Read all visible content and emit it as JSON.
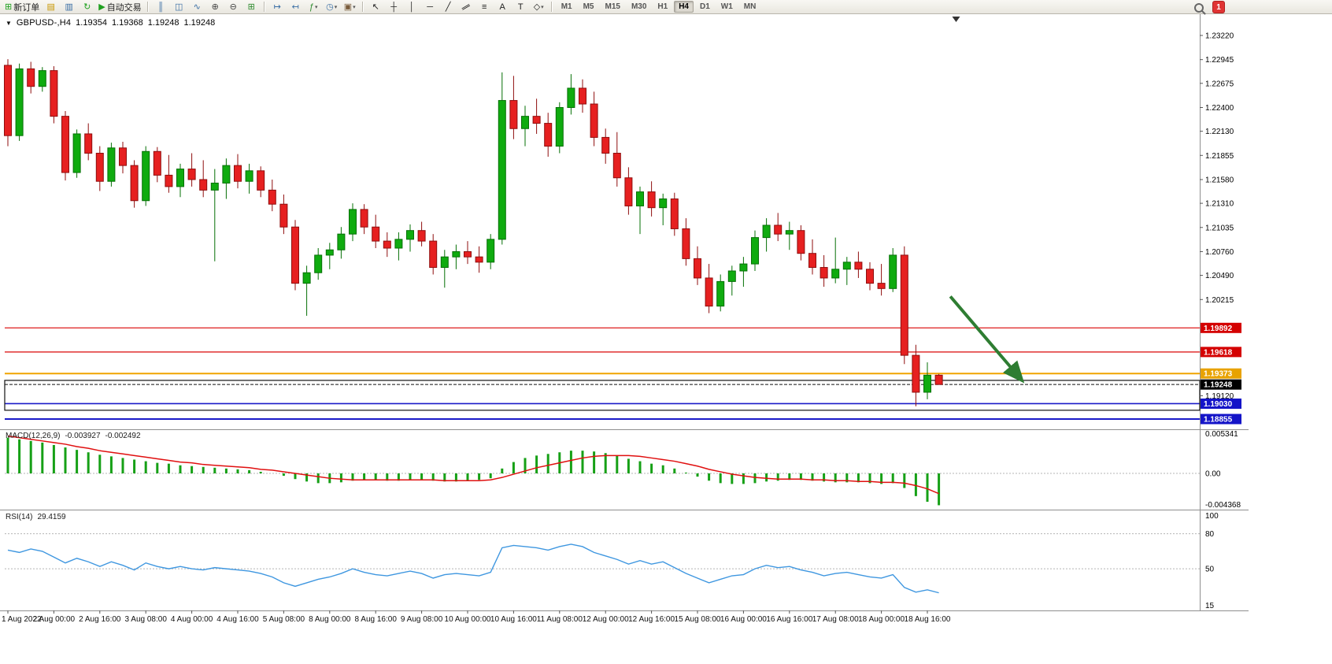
{
  "toolbar": {
    "groups": [
      {
        "items": [
          {
            "name": "new-order-button",
            "glyph": "⊞",
            "color": "#1fa01f",
            "label": "新订单"
          },
          {
            "name": "profiles-button",
            "glyph": "▤",
            "color": "#c89600"
          },
          {
            "name": "market-watch-button",
            "glyph": "▥",
            "color": "#3a6ea5"
          },
          {
            "name": "refresh-button",
            "glyph": "↻",
            "color": "#1fa01f"
          },
          {
            "name": "auto-trading-button",
            "glyph": "▶",
            "color": "#1fa01f",
            "label": "自动交易"
          }
        ]
      },
      {
        "items": [
          {
            "name": "bar-chart-button",
            "glyph": "║",
            "color": "#3a6ea5"
          },
          {
            "name": "candlestick-chart-button",
            "glyph": "◫",
            "color": "#3a6ea5"
          },
          {
            "name": "line-chart-button",
            "glyph": "∿",
            "color": "#3a6ea5"
          },
          {
            "name": "zoom-in-button",
            "glyph": "⊕",
            "color": "#444444"
          },
          {
            "name": "zoom-out-button",
            "glyph": "⊖",
            "color": "#444444"
          },
          {
            "name": "tile-windows-button",
            "glyph": "⊞",
            "color": "#2e8b2e"
          }
        ]
      },
      {
        "items": [
          {
            "name": "auto-scroll-button",
            "glyph": "↦",
            "color": "#3a6ea5"
          },
          {
            "name": "chart-shift-button",
            "glyph": "↤",
            "color": "#3a6ea5"
          },
          {
            "name": "indicators-button",
            "glyph": "ƒ",
            "color": "#2e8b2e",
            "dropdown": true
          },
          {
            "name": "periods-button",
            "glyph": "◷",
            "color": "#3a6ea5",
            "dropdown": true
          },
          {
            "name": "templates-button",
            "glyph": "▣",
            "color": "#7a5c3c",
            "dropdown": true
          }
        ]
      },
      {
        "items": [
          {
            "name": "cursor-button",
            "glyph": "↖",
            "color": "#222222"
          },
          {
            "name": "crosshair-button",
            "glyph": "┼",
            "color": "#222222"
          },
          {
            "name": "vertical-line-button",
            "glyph": "│",
            "color": "#222222"
          },
          {
            "name": "horizontal-line-button",
            "glyph": "─",
            "color": "#222222"
          },
          {
            "name": "trendline-button",
            "glyph": "╱",
            "color": "#222222"
          },
          {
            "name": "channel-button",
            "glyph": "∥",
            "color": "#222222",
            "rotate": true
          },
          {
            "name": "fibonacci-button",
            "glyph": "≡",
            "color": "#222222"
          },
          {
            "name": "text-button",
            "glyph": "A",
            "color": "#222222"
          },
          {
            "name": "label-button",
            "glyph": "T",
            "color": "#222222"
          },
          {
            "name": "shapes-button",
            "glyph": "◇",
            "color": "#222222",
            "dropdown": true
          }
        ]
      }
    ],
    "timeframes": [
      {
        "label": "M1"
      },
      {
        "label": "M5"
      },
      {
        "label": "M15"
      },
      {
        "label": "M30"
      },
      {
        "label": "H1"
      },
      {
        "label": "H4",
        "active": true
      },
      {
        "label": "D1"
      },
      {
        "label": "W1"
      },
      {
        "label": "MN"
      }
    ],
    "notification_badge": "1"
  },
  "chart": {
    "header": {
      "collapse_icon": "▼",
      "symbol": "GBPUSD-,H4",
      "open": "1.19354",
      "high": "1.19368",
      "low": "1.19248",
      "close": "1.19248"
    },
    "price_axis_labels": [
      "1.23220",
      "1.22945",
      "1.22675",
      "1.22400",
      "1.22130",
      "1.21855",
      "1.21580",
      "1.21310",
      "1.21035",
      "1.20760",
      "1.20490",
      "1.20215",
      "1.19120"
    ],
    "axis_tags": [
      {
        "label": "1.19892",
        "price": 1.19892,
        "bg": "#d40000",
        "fg": "#ffffff"
      },
      {
        "label": "1.19618",
        "price": 1.19618,
        "bg": "#d40000",
        "fg": "#ffffff"
      },
      {
        "label": "1.19373",
        "price": 1.19373,
        "bg": "#e8a200",
        "fg": "#ffffff"
      },
      {
        "label": "1.19248",
        "price": 1.19248,
        "bg": "#000000",
        "fg": "#ffffff"
      },
      {
        "label": "1.19030",
        "price": 1.1903,
        "bg": "#1414c8",
        "fg": "#ffffff"
      },
      {
        "label": "1.18855",
        "price": 1.18855,
        "bg": "#1414c8",
        "fg": "#ffffff"
      }
    ],
    "objects": {
      "hlines": [
        {
          "price": 1.19892,
          "color": "#e03030",
          "width": 1.4
        },
        {
          "price": 1.19618,
          "color": "#e03030",
          "width": 1.4
        },
        {
          "price": 1.19373,
          "color": "#f0a400",
          "width": 2
        },
        {
          "price": 1.1903,
          "color": "#1a1ac8",
          "width": 1.6
        },
        {
          "price": 1.18855,
          "color": "#1a1ac8",
          "width": 2
        }
      ],
      "bid_line": {
        "price": 1.19248,
        "color": "#111111"
      },
      "rectangle": {
        "price_top": 1.19295,
        "price_bottom": 1.18955,
        "color": "#111111"
      },
      "arrow": {
        "from_candle": 82,
        "from_price": 1.2025,
        "to_candle": 88,
        "to_price": 1.1933,
        "color": "#2e7d32"
      },
      "shift_marker_candle": 82.5
    }
  },
  "macd_panel": {
    "title": "MACD(12,26,9)",
    "value_main": "-0.003927",
    "value_signal": "-0.002492",
    "axis_labels": [
      "0.005341",
      "0.00",
      "-0.004368"
    ]
  },
  "rsi_panel": {
    "title": "RSI(14)",
    "value": "29.4159",
    "axis_labels": [
      "100",
      "80",
      "50",
      "15"
    ]
  },
  "time_axis": {
    "label_every": 4,
    "labels": [
      "1 Aug 2022",
      "2 Aug 00:00",
      "2 Aug 16:00",
      "3 Aug 08:00",
      "4 Aug 00:00",
      "4 Aug 16:00",
      "5 Aug 08:00",
      "8 Aug 00:00",
      "8 Aug 16:00",
      "9 Aug 08:00",
      "10 Aug 00:00",
      "10 Aug 16:00",
      "11 Aug 08:00",
      "12 Aug 00:00",
      "12 Aug 16:00",
      "15 Aug 08:00",
      "16 Aug 00:00",
      "16 Aug 16:00",
      "17 Aug 08:00",
      "18 Aug 00:00",
      "18 Aug 16:00"
    ]
  },
  "chart_data": [
    {
      "type": "candlestick",
      "title": "GBPUSD- H4",
      "up_color": "#0fab0f",
      "up_stroke": "#067006",
      "down_color": "#e62020",
      "down_stroke": "#8f0e0e",
      "ylim": [
        1.1874,
        1.2344
      ],
      "ohlc": [
        [
          1.2288,
          1.2295,
          1.2196,
          1.2208
        ],
        [
          1.2208,
          1.229,
          1.2202,
          1.2284
        ],
        [
          1.2284,
          1.2292,
          1.2256,
          1.2264
        ],
        [
          1.2264,
          1.2286,
          1.2258,
          1.2282
        ],
        [
          1.2282,
          1.2287,
          1.2222,
          1.223
        ],
        [
          1.223,
          1.2236,
          1.2157,
          1.2166
        ],
        [
          1.2166,
          1.2215,
          1.216,
          1.221
        ],
        [
          1.221,
          1.2222,
          1.218,
          1.2188
        ],
        [
          1.2188,
          1.2196,
          1.2145,
          1.2156
        ],
        [
          1.2156,
          1.22,
          1.215,
          1.2194
        ],
        [
          1.2194,
          1.2201,
          1.2165,
          1.2174
        ],
        [
          1.2174,
          1.218,
          1.2126,
          1.2134
        ],
        [
          1.2134,
          1.2196,
          1.2128,
          1.219
        ],
        [
          1.219,
          1.2195,
          1.2155,
          1.2163
        ],
        [
          1.2163,
          1.2186,
          1.2143,
          1.215
        ],
        [
          1.215,
          1.2176,
          1.2138,
          1.217
        ],
        [
          1.217,
          1.2188,
          1.215,
          1.2158
        ],
        [
          1.2158,
          1.218,
          1.2138,
          1.2146
        ],
        [
          1.2146,
          1.217,
          1.2065,
          1.2154
        ],
        [
          1.2154,
          1.2182,
          1.2136,
          1.2174
        ],
        [
          1.2174,
          1.2187,
          1.2148,
          1.2156
        ],
        [
          1.2156,
          1.2176,
          1.2142,
          1.2168
        ],
        [
          1.2168,
          1.2173,
          1.2138,
          1.2146
        ],
        [
          1.2146,
          1.2158,
          1.2122,
          1.213
        ],
        [
          1.213,
          1.2141,
          1.2096,
          1.2104
        ],
        [
          1.2104,
          1.2112,
          1.2032,
          1.204
        ],
        [
          1.204,
          1.206,
          1.2003,
          1.2052
        ],
        [
          1.2052,
          1.208,
          1.2044,
          1.2072
        ],
        [
          1.2072,
          1.2086,
          1.2056,
          1.2078
        ],
        [
          1.2078,
          1.2104,
          1.2068,
          1.2096
        ],
        [
          1.2096,
          1.2131,
          1.2088,
          1.2124
        ],
        [
          1.2124,
          1.213,
          1.2096,
          1.2104
        ],
        [
          1.2104,
          1.2118,
          1.208,
          1.2088
        ],
        [
          1.2088,
          1.2098,
          1.207,
          1.208
        ],
        [
          1.208,
          1.2098,
          1.2066,
          1.209
        ],
        [
          1.209,
          1.2107,
          1.2076,
          1.21
        ],
        [
          1.21,
          1.211,
          1.2082,
          1.2088
        ],
        [
          1.2088,
          1.2096,
          1.205,
          1.2058
        ],
        [
          1.2058,
          1.2078,
          1.2035,
          1.207
        ],
        [
          1.207,
          1.2084,
          1.2056,
          1.2076
        ],
        [
          1.2076,
          1.2088,
          1.2062,
          1.207
        ],
        [
          1.207,
          1.2082,
          1.2052,
          1.2064
        ],
        [
          1.2064,
          1.2096,
          1.2056,
          1.209
        ],
        [
          1.209,
          1.228,
          1.2084,
          1.2248
        ],
        [
          1.2248,
          1.2276,
          1.2204,
          1.2216
        ],
        [
          1.2216,
          1.2242,
          1.2196,
          1.223
        ],
        [
          1.223,
          1.225,
          1.221,
          1.2222
        ],
        [
          1.2222,
          1.2234,
          1.2184,
          1.2196
        ],
        [
          1.2196,
          1.2246,
          1.2188,
          1.224
        ],
        [
          1.224,
          1.2278,
          1.2232,
          1.2262
        ],
        [
          1.2262,
          1.2272,
          1.2234,
          1.2244
        ],
        [
          1.2244,
          1.2258,
          1.2196,
          1.2206
        ],
        [
          1.2206,
          1.2216,
          1.2176,
          1.2188
        ],
        [
          1.2188,
          1.2212,
          1.215,
          1.216
        ],
        [
          1.216,
          1.2172,
          1.2118,
          1.2128
        ],
        [
          1.2128,
          1.215,
          1.2096,
          1.2144
        ],
        [
          1.2144,
          1.2156,
          1.2116,
          1.2126
        ],
        [
          1.2126,
          1.2142,
          1.2106,
          1.2136
        ],
        [
          1.2136,
          1.2143,
          1.2094,
          1.2102
        ],
        [
          1.2102,
          1.2114,
          1.206,
          1.2068
        ],
        [
          1.2068,
          1.2082,
          1.2038,
          1.2046
        ],
        [
          1.2046,
          1.2062,
          1.2006,
          1.2014
        ],
        [
          1.2014,
          1.205,
          1.2008,
          1.2042
        ],
        [
          1.2042,
          1.206,
          1.2026,
          1.2054
        ],
        [
          1.2054,
          1.207,
          1.2036,
          1.2062
        ],
        [
          1.2062,
          1.21,
          1.2054,
          1.2092
        ],
        [
          1.2092,
          1.2114,
          1.2076,
          1.2106
        ],
        [
          1.2106,
          1.212,
          1.2088,
          1.2096
        ],
        [
          1.2096,
          1.211,
          1.2078,
          1.21
        ],
        [
          1.21,
          1.2106,
          1.2066,
          1.2074
        ],
        [
          1.2074,
          1.209,
          1.205,
          1.2058
        ],
        [
          1.2058,
          1.2072,
          1.2036,
          1.2046
        ],
        [
          1.2046,
          1.2092,
          1.204,
          1.2056
        ],
        [
          1.2056,
          1.207,
          1.2038,
          1.2064
        ],
        [
          1.2064,
          1.2076,
          1.2046,
          1.2056
        ],
        [
          1.2056,
          1.2064,
          1.2032,
          1.204
        ],
        [
          1.204,
          1.2062,
          1.2026,
          1.2034
        ],
        [
          1.2034,
          1.208,
          1.203,
          1.2072
        ],
        [
          1.2072,
          1.2082,
          1.1948,
          1.1958
        ],
        [
          1.1958,
          1.197,
          1.19,
          1.1916
        ],
        [
          1.1916,
          1.195,
          1.1908,
          1.19354
        ],
        [
          1.19354,
          1.19368,
          1.19248,
          1.19248
        ]
      ]
    },
    {
      "type": "bar",
      "name": "MACD(12,26,9) histogram",
      "bar_color": "#16a016",
      "signal_color": "#e01010",
      "ylim": [
        -0.004368,
        0.005341
      ],
      "values": [
        0.0044,
        0.0042,
        0.004,
        0.0038,
        0.0035,
        0.0032,
        0.0029,
        0.0026,
        0.0023,
        0.0021,
        0.0019,
        0.0017,
        0.0015,
        0.0013,
        0.0012,
        0.001,
        0.0009,
        0.0008,
        0.0007,
        0.0006,
        0.0005,
        0.0004,
        0.0002,
        0.0,
        -0.0003,
        -0.0007,
        -0.001,
        -0.0012,
        -0.0012,
        -0.0011,
        -0.0009,
        -0.0008,
        -0.0008,
        -0.0009,
        -0.0009,
        -0.0008,
        -0.0008,
        -0.0009,
        -0.001,
        -0.001,
        -0.0009,
        -0.0008,
        -0.0006,
        0.0006,
        0.0014,
        0.0019,
        0.0022,
        0.0024,
        0.0026,
        0.0028,
        0.0028,
        0.0027,
        0.0025,
        0.0022,
        0.0018,
        0.0015,
        0.0012,
        0.001,
        0.0006,
        0.0001,
        -0.0004,
        -0.0009,
        -0.0012,
        -0.0013,
        -0.0013,
        -0.0012,
        -0.001,
        -0.0009,
        -0.0008,
        -0.0008,
        -0.0009,
        -0.001,
        -0.0011,
        -0.0011,
        -0.0011,
        -0.0012,
        -0.0013,
        -0.0012,
        -0.0018,
        -0.0028,
        -0.0035,
        -0.003927
      ],
      "signal": [
        0.0046,
        0.0044,
        0.0042,
        0.004,
        0.0038,
        0.0036,
        0.0033,
        0.0031,
        0.0028,
        0.0026,
        0.0024,
        0.0022,
        0.002,
        0.0018,
        0.0016,
        0.0014,
        0.0013,
        0.0011,
        0.001,
        0.0009,
        0.0008,
        0.0007,
        0.0005,
        0.0004,
        0.0002,
        0.0,
        -0.0002,
        -0.0004,
        -0.0006,
        -0.0007,
        -0.0008,
        -0.0008,
        -0.0008,
        -0.0008,
        -0.0008,
        -0.0008,
        -0.0008,
        -0.0008,
        -0.0009,
        -0.0009,
        -0.0009,
        -0.0009,
        -0.0008,
        -0.0005,
        -0.0001,
        0.0003,
        0.0007,
        0.001,
        0.0013,
        0.0016,
        0.0019,
        0.0021,
        0.0022,
        0.0022,
        0.0022,
        0.0021,
        0.0019,
        0.0017,
        0.0015,
        0.0012,
        0.0009,
        0.0005,
        0.0002,
        -0.0001,
        -0.0003,
        -0.0005,
        -0.0006,
        -0.0007,
        -0.0007,
        -0.0007,
        -0.0008,
        -0.0008,
        -0.0009,
        -0.0009,
        -0.001,
        -0.001,
        -0.0011,
        -0.0011,
        -0.0012,
        -0.0015,
        -0.0019,
        -0.002492
      ]
    },
    {
      "type": "line",
      "name": "RSI(14)",
      "color": "#3f97e0",
      "ylim": [
        15,
        100
      ],
      "levels": [
        80,
        50
      ],
      "values": [
        66,
        64,
        67,
        65,
        60,
        55,
        59,
        56,
        52,
        56,
        53,
        49,
        55,
        52,
        50,
        52,
        50,
        49,
        51,
        50,
        49,
        48,
        46,
        43,
        38,
        35,
        38,
        41,
        43,
        46,
        50,
        47,
        45,
        44,
        46,
        48,
        46,
        42,
        45,
        46,
        45,
        44,
        47,
        68,
        70,
        69,
        68,
        66,
        69,
        71,
        69,
        64,
        61,
        58,
        54,
        57,
        54,
        56,
        51,
        46,
        42,
        38,
        41,
        44,
        45,
        50,
        53,
        51,
        52,
        49,
        47,
        44,
        46,
        47,
        45,
        43,
        42,
        45,
        34,
        30,
        32,
        29.4159
      ]
    }
  ]
}
